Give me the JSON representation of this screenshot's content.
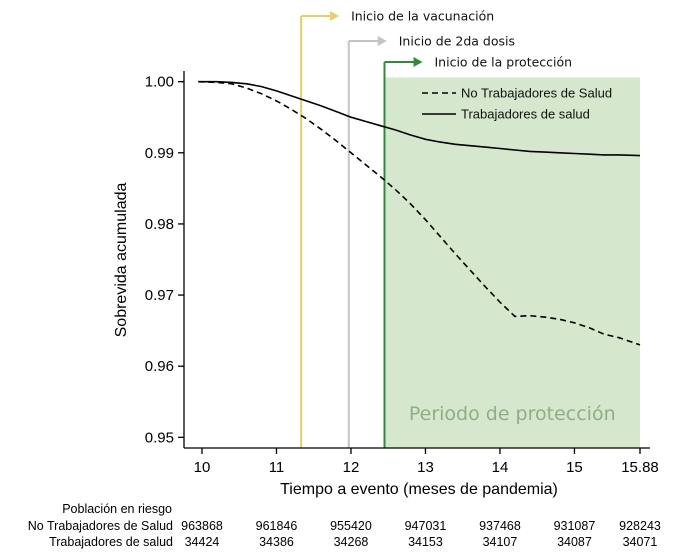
{
  "chart_data": {
    "type": "line",
    "ylabel": "Sobrevida acumulada",
    "xlabel": "Tiempo a evento (meses de pandemia)",
    "xlim": [
      10,
      15.88
    ],
    "ylim": [
      0.9485,
      1.0015
    ],
    "x_ticks": [
      10,
      11,
      12,
      13,
      14,
      15,
      15.88
    ],
    "x_tick_labels": [
      "10",
      "11",
      "12",
      "13",
      "14",
      "15",
      "15.88"
    ],
    "y_ticks": [
      0.95,
      0.96,
      0.97,
      0.98,
      0.99,
      1.0
    ],
    "y_tick_labels": [
      "0.95",
      "0.96",
      "0.97",
      "0.98",
      "0.99",
      "1.00"
    ],
    "grid": false,
    "legend_position": "top-right",
    "series": [
      {
        "name": "No Trabajadores de Salud",
        "style": "dashed",
        "color": "#000000",
        "x": [
          9.95,
          10.2,
          10.4,
          10.6,
          10.8,
          11.0,
          11.2,
          11.4,
          11.6,
          11.8,
          12.0,
          12.2,
          12.4,
          12.6,
          12.8,
          13.0,
          13.2,
          13.4,
          13.6,
          13.8,
          14.0,
          14.2,
          14.4,
          14.6,
          14.8,
          15.0,
          15.2,
          15.4,
          15.6,
          15.88
        ],
        "y": [
          1.0,
          0.9999,
          0.9997,
          0.9991,
          0.9983,
          0.9973,
          0.9961,
          0.9948,
          0.9933,
          0.9917,
          0.99,
          0.9883,
          0.9866,
          0.9848,
          0.9828,
          0.9806,
          0.9782,
          0.9758,
          0.9735,
          0.9712,
          0.969,
          0.967,
          0.9671,
          0.9669,
          0.9666,
          0.9661,
          0.9654,
          0.9645,
          0.964,
          0.963
        ]
      },
      {
        "name": "Trabajadores de salud",
        "style": "solid",
        "color": "#000000",
        "x": [
          9.95,
          10.2,
          10.4,
          10.6,
          10.8,
          11.0,
          11.2,
          11.4,
          11.6,
          11.8,
          12.0,
          12.2,
          12.4,
          12.6,
          12.8,
          13.0,
          13.2,
          13.4,
          13.6,
          13.8,
          14.0,
          14.2,
          14.4,
          14.6,
          14.8,
          15.0,
          15.2,
          15.4,
          15.6,
          15.88
        ],
        "y": [
          1.0,
          1.0,
          0.9999,
          0.9997,
          0.9993,
          0.9987,
          0.998,
          0.9973,
          0.9966,
          0.9958,
          0.995,
          0.9944,
          0.9938,
          0.9932,
          0.9925,
          0.9919,
          0.9915,
          0.9912,
          0.991,
          0.9908,
          0.9906,
          0.9904,
          0.9902,
          0.9901,
          0.99,
          0.9899,
          0.9898,
          0.9897,
          0.9897,
          0.9896
        ]
      }
    ],
    "markers": [
      {
        "label": "Inicio de la vacunación",
        "x": 11.33,
        "color": "#e6cf6a"
      },
      {
        "label": "Inicio de 2da dosis",
        "x": 11.97,
        "color": "#c4c4c4"
      },
      {
        "label": "Inicio de la protección",
        "x": 12.45,
        "color": "#2e8b3e"
      }
    ],
    "shaded_region": {
      "label": "Periodo de protección",
      "x_start": 12.45,
      "x_end": 15.88,
      "y_top": 1.0006,
      "color": "#d5e8ce"
    },
    "risk_table": {
      "title": "Población en riesgo",
      "rows": [
        {
          "label": "No Trabajadores de Salud",
          "values": [
            "963868",
            "961846",
            "955420",
            "947031",
            "937468",
            "931087",
            "928243"
          ]
        },
        {
          "label": "Trabajadores de salud",
          "values": [
            "34424",
            "34386",
            "34268",
            "34153",
            "34107",
            "34087",
            "34071"
          ]
        }
      ]
    }
  }
}
